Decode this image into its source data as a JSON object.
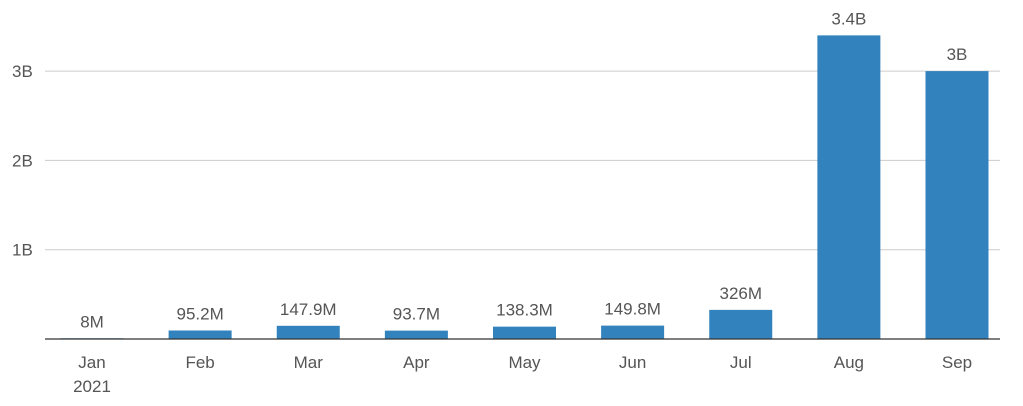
{
  "chart_data": {
    "type": "bar",
    "categories": [
      "Jan",
      "Feb",
      "Mar",
      "Apr",
      "May",
      "Jun",
      "Jul",
      "Aug",
      "Sep"
    ],
    "category_sublabels": [
      "2021",
      "",
      "",
      "",
      "",
      "",
      "",
      "",
      ""
    ],
    "values": [
      8000000,
      95200000,
      147900000,
      93700000,
      138300000,
      149800000,
      326000000,
      3400000000,
      3000000000
    ],
    "value_labels": [
      "8M",
      "95.2M",
      "147.9M",
      "93.7M",
      "138.3M",
      "149.8M",
      "326M",
      "3.4B",
      "3B"
    ],
    "yticks": [
      1000000000,
      2000000000,
      3000000000
    ],
    "ytick_labels": [
      "1B",
      "2B",
      "3B"
    ],
    "ylim": [
      0,
      3600000000
    ],
    "grid": true,
    "bar_color": "#3182bd",
    "title": "",
    "xlabel": "",
    "ylabel": ""
  }
}
